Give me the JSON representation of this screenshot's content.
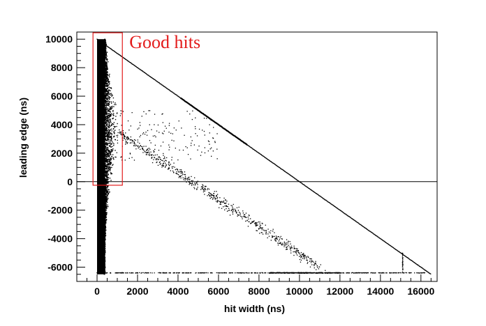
{
  "chart_data": {
    "type": "scatter",
    "xlabel": "hit width (ns)",
    "ylabel": "leading edge (ns)",
    "xlim": [
      -1000,
      16800
    ],
    "ylim": [
      -7000,
      10500
    ],
    "xticks": [
      0,
      2000,
      4000,
      6000,
      8000,
      10000,
      12000,
      14000,
      16000
    ],
    "xtick_labels": [
      "0",
      "2000",
      "4000",
      "6000",
      "8000",
      "10000",
      "12000",
      "14000",
      "16000"
    ],
    "yticks": [
      -6000,
      -4000,
      -2000,
      0,
      2000,
      4000,
      6000,
      8000,
      10000
    ],
    "ytick_labels": [
      "-6000",
      "-4000",
      "-2000",
      "0",
      "2000",
      "4000",
      "6000",
      "8000",
      "10000"
    ],
    "grid": false,
    "reference_line": {
      "y": 0
    },
    "annotation": {
      "text": "Good hits",
      "box": {
        "x0": -200,
        "x1": 1250,
        "y0": -250,
        "y1": 10450
      },
      "color": "#e31b1b"
    },
    "features": {
      "dense_band": {
        "x_min": 0,
        "x_max": 400,
        "y_min": -6500,
        "y_max": 10000,
        "max_width_at_y": 1100,
        "peak_y": 3500
      },
      "diagonal_line": {
        "from": [
          0,
          10000
        ],
        "to": [
          16500,
          -6500
        ]
      },
      "diagonal_scatter": {
        "from": [
          1000,
          3500
        ],
        "to": [
          11000,
          -6000
        ]
      },
      "bottom_line": {
        "y": -6400,
        "x_min": 0,
        "x_max": 16200
      },
      "vertical_segment": {
        "x": 15100,
        "y_min": -6400,
        "y_max": -5000
      }
    },
    "colors": {
      "points": "#000000",
      "annotation": "#e31b1b",
      "reference_line": "#000000"
    }
  }
}
